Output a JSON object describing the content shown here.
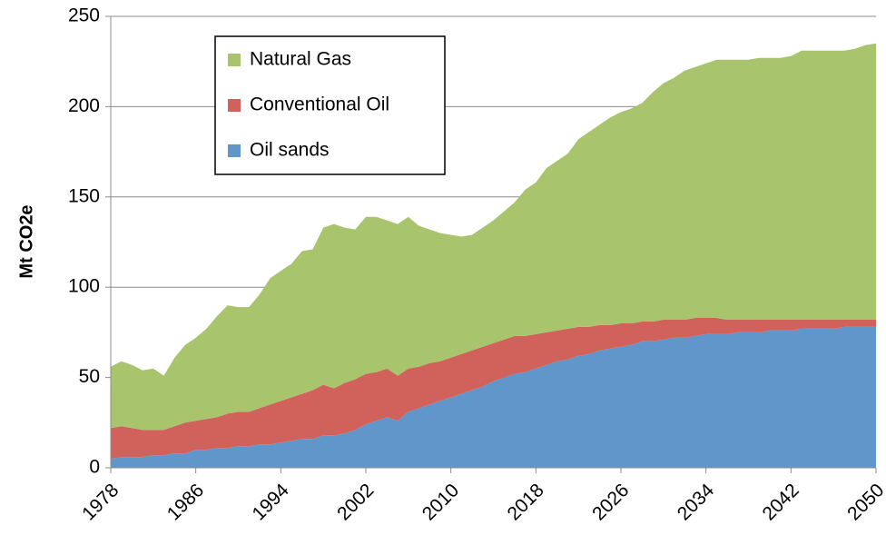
{
  "chart_data": {
    "type": "stacked-area",
    "y_label": "Mt CO2e",
    "x": [
      1978,
      1979,
      1980,
      1981,
      1982,
      1983,
      1984,
      1985,
      1986,
      1987,
      1988,
      1989,
      1990,
      1991,
      1992,
      1993,
      1994,
      1995,
      1996,
      1997,
      1998,
      1999,
      2000,
      2001,
      2002,
      2003,
      2004,
      2005,
      2006,
      2007,
      2008,
      2009,
      2010,
      2011,
      2012,
      2013,
      2014,
      2015,
      2016,
      2017,
      2018,
      2019,
      2020,
      2021,
      2022,
      2023,
      2024,
      2025,
      2026,
      2027,
      2028,
      2029,
      2030,
      2031,
      2032,
      2033,
      2034,
      2035,
      2036,
      2037,
      2038,
      2039,
      2040,
      2041,
      2042,
      2043,
      2044,
      2045,
      2046,
      2047,
      2048,
      2049,
      2050
    ],
    "series": [
      {
        "name": "Oil sands",
        "color": "#6196cb",
        "values": [
          5,
          6,
          6,
          6,
          7,
          7,
          8,
          8,
          10,
          10,
          11,
          11,
          12,
          12,
          13,
          13,
          14,
          15,
          16,
          16,
          18,
          18,
          19,
          21,
          24,
          26,
          28,
          26,
          31,
          33,
          35,
          37,
          39,
          41,
          43,
          45,
          48,
          50,
          52,
          53,
          55,
          57,
          59,
          60,
          62,
          63,
          65,
          66,
          67,
          68,
          70,
          70,
          71,
          72,
          72,
          73,
          74,
          74,
          74,
          75,
          75,
          75,
          76,
          76,
          76,
          77,
          77,
          77,
          77,
          78,
          78,
          78,
          78
        ]
      },
      {
        "name": "Conventional Oil",
        "color": "#d0615b",
        "values": [
          17,
          17,
          16,
          15,
          14,
          14,
          15,
          17,
          16,
          17,
          17,
          19,
          19,
          19,
          20,
          22,
          23,
          24,
          25,
          27,
          28,
          26,
          28,
          28,
          28,
          27,
          27,
          25,
          24,
          23,
          23,
          22,
          22,
          22,
          22,
          22,
          21,
          21,
          21,
          20,
          19,
          18,
          17,
          17,
          16,
          15,
          14,
          13,
          13,
          12,
          11,
          11,
          11,
          10,
          10,
          10,
          9,
          9,
          8,
          7,
          7,
          7,
          6,
          6,
          6,
          5,
          5,
          5,
          5,
          4,
          4,
          4,
          4
        ]
      },
      {
        "name": "Natural Gas",
        "color": "#a8c46c",
        "values": [
          34,
          36,
          35,
          33,
          34,
          30,
          38,
          43,
          46,
          50,
          56,
          60,
          58,
          58,
          63,
          70,
          72,
          74,
          79,
          78,
          87,
          91,
          86,
          83,
          87,
          86,
          82,
          84,
          84,
          78,
          74,
          71,
          68,
          65,
          64,
          66,
          68,
          71,
          74,
          81,
          84,
          91,
          94,
          97,
          104,
          108,
          111,
          115,
          117,
          119,
          121,
          127,
          131,
          134,
          138,
          139,
          141,
          143,
          144,
          144,
          144,
          145,
          145,
          145,
          146,
          149,
          149,
          149,
          149,
          149,
          150,
          152,
          153
        ]
      }
    ],
    "xlim": [
      1978,
      2050
    ],
    "xticks": [
      1978,
      1986,
      1994,
      2002,
      2010,
      2018,
      2026,
      2034,
      2042,
      2050
    ],
    "ylim": [
      0,
      250
    ],
    "yticks": [
      0,
      50,
      100,
      150,
      200,
      250
    ],
    "grid": true,
    "legend": "top-left"
  }
}
